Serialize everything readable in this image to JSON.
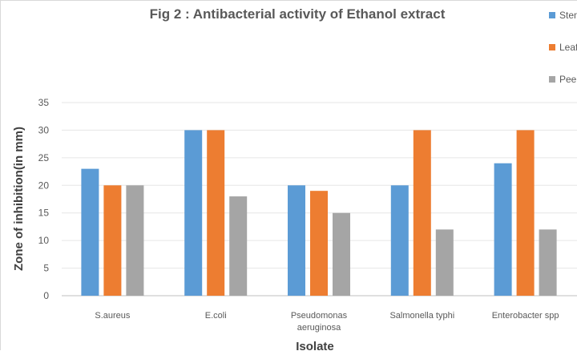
{
  "chart_data": {
    "type": "bar",
    "title": "Fig 2 : Antibacterial activity of Ethanol extract",
    "xlabel": "Isolate",
    "ylabel": "Zone of inhibition(in mm)",
    "ylim": [
      0,
      35
    ],
    "yticks": [
      0,
      5,
      10,
      15,
      20,
      25,
      30,
      35
    ],
    "grid": true,
    "legend_position": "right",
    "categories": [
      [
        "S.aureus"
      ],
      [
        "E.coli"
      ],
      [
        "Pseudomonas",
        "aeruginosa"
      ],
      [
        "Salmonella typhi"
      ],
      [
        "Enterobacter spp"
      ]
    ],
    "series": [
      {
        "name": "Stem",
        "color": "#5b9bd5",
        "values": [
          23,
          30,
          20,
          20,
          24
        ]
      },
      {
        "name": "Leaf",
        "color": "#ed7d31",
        "values": [
          20,
          30,
          19,
          30,
          30
        ]
      },
      {
        "name": "Peel",
        "color": "#a5a5a5",
        "values": [
          20,
          18,
          15,
          12,
          12
        ]
      }
    ]
  }
}
